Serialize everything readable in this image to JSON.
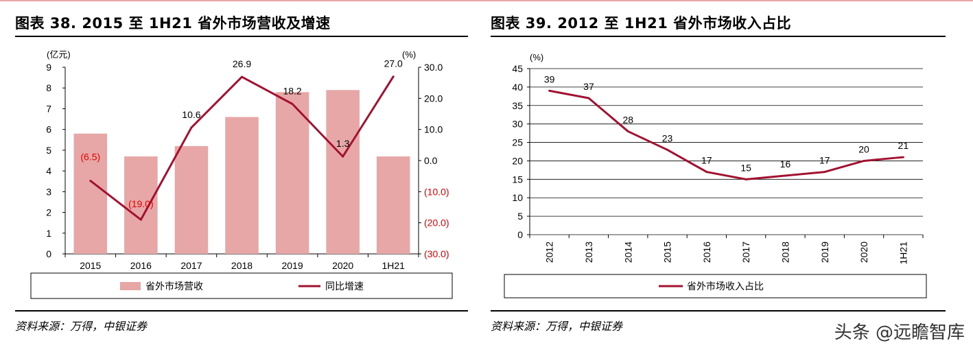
{
  "colors": {
    "bar": "#E8A7A7",
    "line": "#A31130",
    "accent_line": "#E56B77",
    "negative_label": "#E00000",
    "grid": "#000000"
  },
  "left_panel": {
    "title": "图表 38. 2015 至 1H21 省外市场营收及增速",
    "source": "资料来源：万得，中银证券"
  },
  "right_panel": {
    "title": "图表 39. 2012 至 1H21 省外市场收入占比",
    "source": "资料来源：万得，中银证券"
  },
  "watermark": "头条 @远瞻智库",
  "chart_data": [
    {
      "type": "bar",
      "categories": [
        "2015",
        "2016",
        "2017",
        "2018",
        "2019",
        "2020",
        "1H21"
      ],
      "series": [
        {
          "name": "省外市场营收",
          "type": "bar",
          "axis": "left",
          "values": [
            5.8,
            4.7,
            5.2,
            6.6,
            7.8,
            7.9,
            4.7
          ]
        },
        {
          "name": "同比增速",
          "type": "line",
          "axis": "right",
          "values": [
            -6.5,
            -19.0,
            10.6,
            26.9,
            18.2,
            1.3,
            27.0
          ],
          "data_labels": [
            "(6.5)",
            "(19.0)",
            "10.6",
            "26.9",
            "18.2",
            "1.3",
            "27.0"
          ]
        }
      ],
      "ylabel_left": "(亿元)",
      "ylabel_right": "(%)",
      "ylim_left": [
        0,
        9
      ],
      "ylim_right": [
        -30,
        30
      ],
      "yticks_left": [
        "0",
        "1",
        "2",
        "3",
        "4",
        "5",
        "6",
        "7",
        "8",
        "9"
      ],
      "yticks_right": [
        "(30.0)",
        "(20.0)",
        "(10.0)",
        "0.0",
        "10.0",
        "20.0",
        "30.0"
      ],
      "grid": false,
      "legend_placement": "bottom"
    },
    {
      "type": "line",
      "categories": [
        "2012",
        "2013",
        "2014",
        "2015",
        "2016",
        "2017",
        "2018",
        "2019",
        "2020",
        "1H21"
      ],
      "series": [
        {
          "name": "省外市场收入占比",
          "values": [
            39,
            37,
            28,
            23,
            17,
            15,
            16,
            17,
            20,
            21
          ]
        }
      ],
      "ylabel": "(%)",
      "ylim": [
        0,
        45
      ],
      "yticks": [
        "0",
        "5",
        "10",
        "15",
        "20",
        "25",
        "30",
        "35",
        "40",
        "45"
      ],
      "grid": true,
      "legend_placement": "bottom"
    }
  ]
}
